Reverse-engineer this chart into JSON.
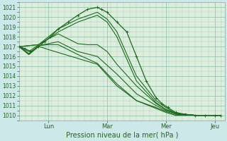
{
  "xlabel": "Pression niveau de la mer( hPa )",
  "bg_color": "#cce8e8",
  "plot_bg_color": "#ddeedd",
  "grid_minor_color": "#aaccbb",
  "grid_major_color": "#88bbaa",
  "line_color": "#1a6b1a",
  "ylim": [
    1009.5,
    1021.5
  ],
  "xlim": [
    0,
    10.5
  ],
  "yticks": [
    1010,
    1011,
    1012,
    1013,
    1014,
    1015,
    1016,
    1017,
    1018,
    1019,
    1020,
    1021
  ],
  "day_labels": [
    "Lun",
    "Mar",
    "Mer",
    "Jeu"
  ],
  "day_positions": [
    1.5,
    4.5,
    7.5,
    10.0
  ],
  "figsize": [
    3.2,
    2.0
  ],
  "dpi": 100,
  "series": [
    {
      "x": [
        0.0,
        0.3,
        0.6,
        1.0,
        1.3,
        1.6,
        2.0,
        2.5,
        3.0,
        3.5,
        4.0,
        4.2,
        4.5,
        5.0,
        5.5,
        6.0,
        6.5,
        7.0,
        7.3,
        7.6,
        8.0,
        8.5,
        9.0,
        9.5,
        10.0,
        10.3
      ],
      "y": [
        1017.0,
        1016.8,
        1016.5,
        1017.0,
        1017.5,
        1018.0,
        1018.8,
        1019.5,
        1020.2,
        1020.8,
        1021.0,
        1020.8,
        1020.5,
        1019.5,
        1018.5,
        1016.0,
        1013.5,
        1011.8,
        1011.2,
        1010.8,
        1010.3,
        1010.1,
        1010.0,
        1010.0,
        1010.0,
        1010.0
      ],
      "has_markers": true,
      "lw": 0.9
    },
    {
      "x": [
        0.0,
        1.0,
        1.5,
        2.0,
        3.0,
        4.0,
        4.5,
        5.0,
        6.0,
        7.0,
        7.5,
        8.0,
        9.0,
        10.0,
        10.3
      ],
      "y": [
        1017.0,
        1017.2,
        1018.0,
        1018.8,
        1019.8,
        1020.5,
        1019.8,
        1018.5,
        1014.0,
        1011.5,
        1010.8,
        1010.2,
        1010.0,
        1010.0,
        1010.0
      ],
      "has_markers": false,
      "lw": 0.8
    },
    {
      "x": [
        0.0,
        1.0,
        1.5,
        2.0,
        3.0,
        4.0,
        4.5,
        5.0,
        6.0,
        7.0,
        7.5,
        8.0,
        9.0,
        10.0,
        10.3
      ],
      "y": [
        1017.0,
        1017.2,
        1017.8,
        1018.5,
        1019.5,
        1020.2,
        1019.5,
        1018.0,
        1013.5,
        1011.3,
        1010.6,
        1010.2,
        1010.0,
        1010.0,
        1010.0
      ],
      "has_markers": false,
      "lw": 0.8
    },
    {
      "x": [
        0.0,
        0.5,
        1.0,
        1.5,
        2.0,
        2.5,
        3.0,
        3.5,
        4.0,
        4.5,
        5.0,
        6.0,
        7.0,
        7.5,
        8.0,
        9.0,
        10.0,
        10.3
      ],
      "y": [
        1017.0,
        1016.5,
        1017.2,
        1017.8,
        1018.3,
        1017.8,
        1017.3,
        1017.2,
        1017.2,
        1016.5,
        1015.2,
        1013.0,
        1011.2,
        1010.6,
        1010.2,
        1010.0,
        1010.0,
        1010.0
      ],
      "has_markers": false,
      "lw": 0.8
    },
    {
      "x": [
        0.0,
        0.5,
        1.0,
        1.5,
        2.0,
        3.0,
        4.0,
        5.0,
        6.0,
        7.0,
        7.5,
        8.0,
        9.0,
        10.0,
        10.3
      ],
      "y": [
        1017.0,
        1016.3,
        1017.1,
        1017.3,
        1017.5,
        1016.5,
        1016.0,
        1014.2,
        1012.2,
        1011.0,
        1010.5,
        1010.2,
        1010.0,
        1010.0,
        1010.0
      ],
      "has_markers": false,
      "lw": 0.8
    },
    {
      "x": [
        0.0,
        0.5,
        1.0,
        1.5,
        2.0,
        3.0,
        4.0,
        5.0,
        6.0,
        7.0,
        7.5,
        8.0,
        9.0,
        10.0,
        10.3
      ],
      "y": [
        1017.0,
        1016.2,
        1017.1,
        1017.2,
        1017.2,
        1016.2,
        1015.3,
        1013.2,
        1011.5,
        1010.8,
        1010.4,
        1010.1,
        1010.0,
        1010.0,
        1010.0
      ],
      "has_markers": false,
      "lw": 0.8
    },
    {
      "x": [
        0.0,
        0.5,
        1.0,
        1.2,
        1.5,
        2.0,
        3.0,
        4.0,
        5.0,
        6.0,
        7.0,
        7.5,
        8.0,
        9.0,
        10.0,
        10.3
      ],
      "y": [
        1017.0,
        1016.2,
        1017.0,
        1016.9,
        1016.7,
        1016.4,
        1015.8,
        1015.2,
        1013.0,
        1011.5,
        1010.7,
        1010.3,
        1010.0,
        1010.0,
        1010.0,
        1010.0
      ],
      "has_markers": false,
      "lw": 0.8
    }
  ]
}
